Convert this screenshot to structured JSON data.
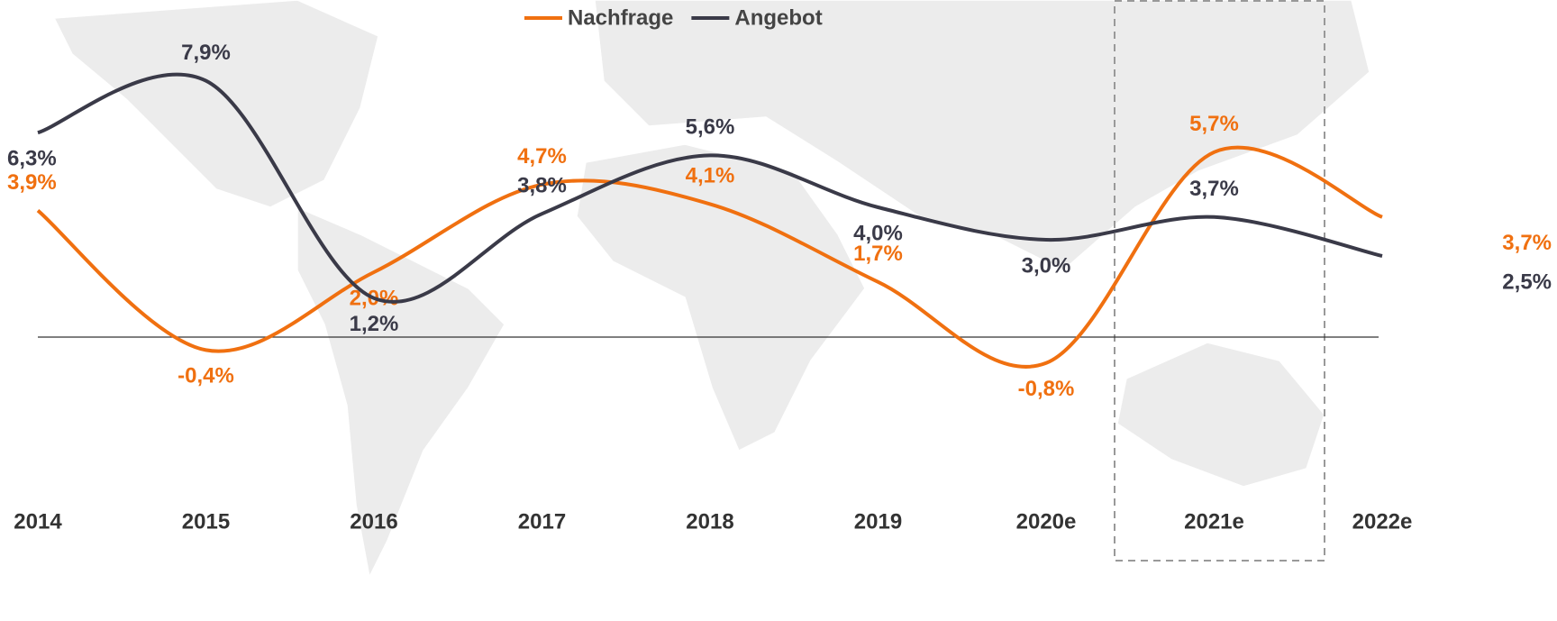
{
  "chart_data": {
    "type": "line",
    "categories": [
      "2014",
      "2015",
      "2016",
      "2017",
      "2018",
      "2019",
      "2020e",
      "2021e",
      "2022e"
    ],
    "series": [
      {
        "name": "Nachfrage",
        "color": "#f07010",
        "values": [
          3.9,
          -0.4,
          2.0,
          4.7,
          4.1,
          1.7,
          -0.8,
          5.7,
          3.7
        ],
        "value_labels": [
          "3,9%",
          "-0,4%",
          "2,0%",
          "4,7%",
          "4,1%",
          "1,7%",
          "-0,8%",
          "5,7%",
          "3,7%"
        ]
      },
      {
        "name": "Angebot",
        "color": "#3a3a48",
        "values": [
          6.3,
          7.9,
          1.2,
          3.8,
          5.6,
          4.0,
          3.0,
          3.7,
          2.5
        ],
        "value_labels": [
          "6,3%",
          "7,9%",
          "1,2%",
          "3,8%",
          "5,6%",
          "4,0%",
          "3,0%",
          "3,7%",
          "2,5%"
        ]
      }
    ],
    "legend": "top"
  }
}
